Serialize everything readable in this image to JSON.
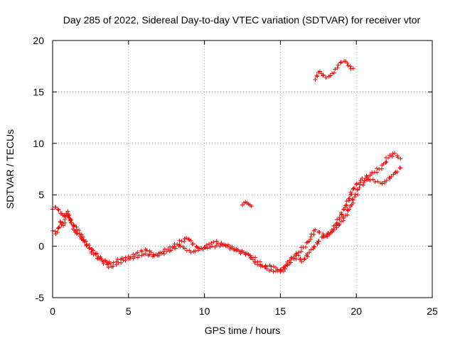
{
  "chart_data": {
    "type": "scatter",
    "title": "Day 285 of 2022, Sidereal Day-to-day VTEC variation (SDTVAR) for receiver vtor",
    "xlabel": "GPS time / hours",
    "ylabel": "SDTVAR / TECUs",
    "xlim": [
      0,
      25
    ],
    "ylim": [
      -5,
      20
    ],
    "xticks": [
      0,
      5,
      10,
      15,
      20,
      25
    ],
    "yticks": [
      -5,
      0,
      5,
      10,
      15,
      20
    ],
    "grid": true,
    "marker": "+",
    "color": "#ff0000",
    "series": [
      {
        "name": "main-a",
        "points": [
          [
            0.0,
            1.5
          ],
          [
            0.2,
            1.2
          ],
          [
            0.4,
            1.8
          ],
          [
            0.5,
            2.4
          ],
          [
            0.7,
            2.0
          ],
          [
            0.8,
            2.6
          ],
          [
            0.9,
            3.2
          ],
          [
            1.0,
            3.4
          ],
          [
            1.1,
            3.0
          ],
          [
            1.2,
            2.3
          ],
          [
            1.4,
            2.0
          ],
          [
            1.6,
            1.6
          ],
          [
            1.8,
            1.2
          ],
          [
            2.0,
            0.9
          ],
          [
            2.2,
            0.5
          ],
          [
            2.4,
            0.1
          ],
          [
            2.6,
            -0.3
          ],
          [
            2.8,
            -0.7
          ],
          [
            3.0,
            -1.0
          ],
          [
            3.2,
            -1.2
          ],
          [
            3.5,
            -1.4
          ],
          [
            3.8,
            -1.7
          ],
          [
            4.0,
            -1.6
          ],
          [
            4.2,
            -1.5
          ],
          [
            4.5,
            -1.3
          ],
          [
            4.8,
            -1.1
          ],
          [
            5.0,
            -1.0
          ],
          [
            5.3,
            -0.8
          ],
          [
            5.6,
            -0.6
          ],
          [
            5.9,
            -0.5
          ],
          [
            6.2,
            -0.4
          ],
          [
            6.5,
            -0.6
          ],
          [
            6.8,
            -0.8
          ],
          [
            7.0,
            -0.7
          ],
          [
            7.3,
            -0.5
          ],
          [
            7.6,
            -0.3
          ],
          [
            7.9,
            -0.1
          ],
          [
            8.2,
            0.2
          ],
          [
            8.5,
            0.5
          ],
          [
            8.8,
            0.8
          ],
          [
            9.0,
            0.6
          ],
          [
            9.2,
            0.2
          ],
          [
            9.5,
            -0.1
          ],
          [
            9.8,
            -0.2
          ],
          [
            10.0,
            -0.1
          ],
          [
            10.3,
            0.2
          ],
          [
            10.6,
            0.4
          ],
          [
            10.9,
            0.3
          ],
          [
            11.2,
            0.1
          ],
          [
            11.5,
            0.0
          ],
          [
            11.8,
            -0.2
          ],
          [
            12.1,
            -0.3
          ],
          [
            12.4,
            -0.5
          ],
          [
            12.7,
            -0.7
          ],
          [
            13.0,
            -0.9
          ],
          [
            13.2,
            -1.3
          ],
          [
            13.5,
            -1.8
          ],
          [
            13.8,
            -1.9
          ],
          [
            14.1,
            -2.0
          ],
          [
            14.4,
            -2.0
          ],
          [
            14.7,
            -2.1
          ],
          [
            15.0,
            -2.3
          ],
          [
            15.2,
            -2.1
          ],
          [
            15.4,
            -1.8
          ],
          [
            15.6,
            -1.4
          ],
          [
            15.9,
            -1.0
          ],
          [
            16.2,
            -0.6
          ],
          [
            16.5,
            -0.1
          ],
          [
            16.8,
            0.4
          ],
          [
            17.0,
            0.9
          ],
          [
            17.2,
            1.5
          ],
          [
            17.5,
            1.4
          ],
          [
            17.8,
            1.2
          ],
          [
            18.0,
            1.0
          ],
          [
            18.3,
            1.3
          ],
          [
            18.6,
            2.0
          ],
          [
            18.9,
            2.8
          ],
          [
            19.2,
            3.6
          ],
          [
            19.5,
            4.6
          ],
          [
            19.8,
            5.6
          ],
          [
            20.0,
            6.0
          ],
          [
            20.3,
            6.4
          ],
          [
            20.6,
            6.6
          ],
          [
            20.9,
            6.9
          ],
          [
            21.2,
            7.2
          ],
          [
            21.5,
            7.5
          ],
          [
            21.8,
            8.0
          ],
          [
            22.1,
            8.6
          ],
          [
            22.4,
            9.0
          ],
          [
            22.7,
            8.8
          ],
          [
            22.9,
            8.5
          ]
        ]
      },
      {
        "name": "main-b",
        "points": [
          [
            0.0,
            3.6
          ],
          [
            0.2,
            3.8
          ],
          [
            0.4,
            3.5
          ],
          [
            0.6,
            3.2
          ],
          [
            0.8,
            3.0
          ],
          [
            1.0,
            3.0
          ],
          [
            1.2,
            2.6
          ],
          [
            1.5,
            1.4
          ],
          [
            1.8,
            1.0
          ],
          [
            2.1,
            0.4
          ],
          [
            2.4,
            -0.2
          ],
          [
            2.7,
            -0.8
          ],
          [
            3.0,
            -1.2
          ],
          [
            3.3,
            -1.5
          ],
          [
            3.6,
            -1.8
          ],
          [
            3.9,
            -2.0
          ],
          [
            4.2,
            -1.8
          ],
          [
            4.5,
            -1.6
          ],
          [
            4.8,
            -1.4
          ],
          [
            5.1,
            -1.2
          ],
          [
            5.4,
            -1.0
          ],
          [
            5.7,
            -0.9
          ],
          [
            6.0,
            -0.8
          ],
          [
            6.3,
            -0.9
          ],
          [
            6.6,
            -1.0
          ],
          [
            6.9,
            -0.9
          ],
          [
            7.2,
            -0.7
          ],
          [
            7.5,
            -0.5
          ],
          [
            7.8,
            -0.4
          ],
          [
            8.1,
            -0.2
          ],
          [
            8.4,
            0.0
          ],
          [
            8.7,
            -0.2
          ],
          [
            9.0,
            -0.4
          ],
          [
            9.3,
            -0.5
          ],
          [
            9.6,
            -0.4
          ],
          [
            9.9,
            -0.3
          ],
          [
            10.2,
            -0.2
          ],
          [
            10.5,
            0.0
          ],
          [
            10.8,
            0.1
          ],
          [
            11.1,
            0.2
          ],
          [
            11.4,
            0.1
          ],
          [
            11.7,
            -0.1
          ],
          [
            12.0,
            -0.3
          ],
          [
            12.3,
            -0.5
          ],
          [
            12.6,
            -0.6
          ],
          [
            12.9,
            -0.8
          ],
          [
            13.2,
            -1.1
          ],
          [
            13.5,
            -1.5
          ],
          [
            13.8,
            -1.9
          ],
          [
            14.1,
            -2.2
          ],
          [
            14.4,
            -2.3
          ],
          [
            14.7,
            -2.4
          ],
          [
            15.0,
            -2.5
          ],
          [
            15.3,
            -2.2
          ],
          [
            15.6,
            -1.7
          ],
          [
            15.9,
            -1.2
          ],
          [
            16.2,
            -0.9
          ],
          [
            16.4,
            -1.5
          ],
          [
            16.6,
            -1.2
          ],
          [
            16.9,
            -0.6
          ],
          [
            17.2,
            -0.1
          ],
          [
            17.5,
            0.5
          ],
          [
            17.8,
            0.9
          ],
          [
            18.1,
            1.1
          ],
          [
            18.4,
            1.4
          ],
          [
            18.7,
            1.8
          ],
          [
            19.0,
            2.4
          ],
          [
            19.3,
            3.0
          ],
          [
            19.6,
            3.9
          ],
          [
            19.9,
            4.8
          ],
          [
            20.2,
            5.7
          ],
          [
            20.5,
            6.2
          ],
          [
            20.8,
            6.5
          ],
          [
            21.1,
            6.5
          ],
          [
            21.4,
            6.3
          ],
          [
            21.7,
            6.1
          ],
          [
            22.0,
            6.4
          ],
          [
            22.3,
            6.8
          ],
          [
            22.6,
            7.2
          ],
          [
            22.9,
            7.6
          ]
        ]
      },
      {
        "name": "isolated-12h",
        "points": [
          [
            12.5,
            4.0
          ],
          [
            12.6,
            4.2
          ],
          [
            12.7,
            4.3
          ],
          [
            12.8,
            4.2
          ],
          [
            12.9,
            4.1
          ],
          [
            13.0,
            4.0
          ],
          [
            13.1,
            3.9
          ]
        ]
      },
      {
        "name": "high-arc",
        "points": [
          [
            17.3,
            16.2
          ],
          [
            17.4,
            16.6
          ],
          [
            17.5,
            16.9
          ],
          [
            17.6,
            17.0
          ],
          [
            17.7,
            16.8
          ],
          [
            17.8,
            16.6
          ],
          [
            18.0,
            16.4
          ],
          [
            18.2,
            16.5
          ],
          [
            18.4,
            16.8
          ],
          [
            18.6,
            17.2
          ],
          [
            18.8,
            17.6
          ],
          [
            19.0,
            17.9
          ],
          [
            19.2,
            18.0
          ],
          [
            19.4,
            17.8
          ],
          [
            19.6,
            17.5
          ],
          [
            19.8,
            17.3
          ]
        ]
      }
    ]
  }
}
